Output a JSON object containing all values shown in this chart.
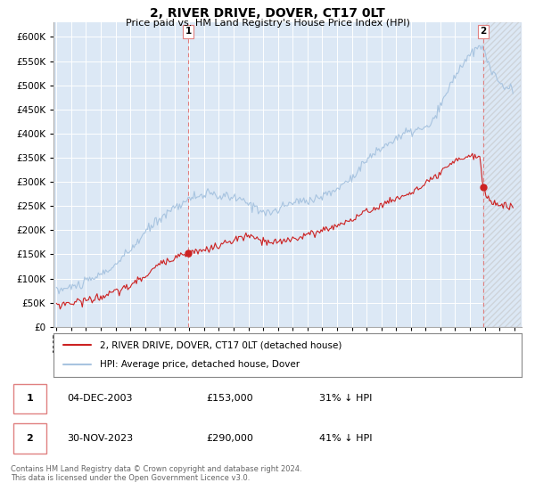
{
  "title": "2, RIVER DRIVE, DOVER, CT17 0LT",
  "subtitle": "Price paid vs. HM Land Registry's House Price Index (HPI)",
  "ylim": [
    0,
    630000
  ],
  "yticks": [
    0,
    50000,
    100000,
    150000,
    200000,
    250000,
    300000,
    350000,
    400000,
    450000,
    500000,
    550000,
    600000
  ],
  "hpi_color": "#a8c4e0",
  "price_color": "#cc2222",
  "marker1_date_idx": 107,
  "marker1_price": 153000,
  "marker2_date_idx": 347,
  "marker2_price": 290000,
  "legend_line1": "2, RIVER DRIVE, DOVER, CT17 0LT (detached house)",
  "legend_line2": "HPI: Average price, detached house, Dover",
  "table_row1": [
    "1",
    "04-DEC-2003",
    "£153,000",
    "31% ↓ HPI"
  ],
  "table_row2": [
    "2",
    "30-NOV-2023",
    "£290,000",
    "41% ↓ HPI"
  ],
  "footer": "Contains HM Land Registry data © Crown copyright and database right 2024.\nThis data is licensed under the Open Government Licence v3.0.",
  "background_color": "#ffffff",
  "plot_bg_color": "#dce8f5",
  "grid_color": "#ffffff",
  "vline_color": "#e08080"
}
